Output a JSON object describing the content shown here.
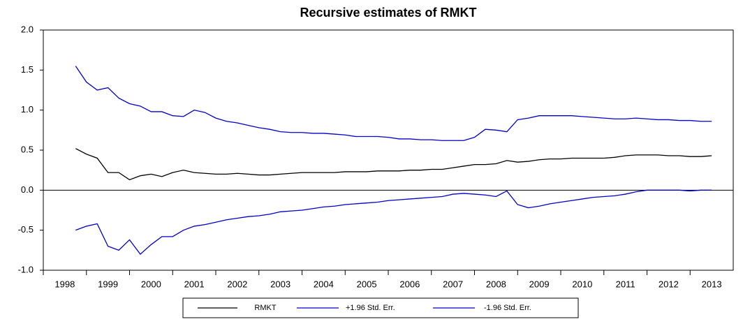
{
  "chart_data": {
    "type": "line",
    "title": "Recursive estimates of RMKT",
    "x": [
      1998.75,
      1999,
      1999.25,
      1999.5,
      1999.75,
      2000,
      2000.25,
      2000.5,
      2000.75,
      2001,
      2001.25,
      2001.5,
      2001.75,
      2002,
      2002.25,
      2002.5,
      2002.75,
      2003,
      2003.25,
      2003.5,
      2003.75,
      2004,
      2004.25,
      2004.5,
      2004.75,
      2005,
      2005.25,
      2005.5,
      2005.75,
      2006,
      2006.25,
      2006.5,
      2006.75,
      2007,
      2007.25,
      2007.5,
      2007.75,
      2008,
      2008.25,
      2008.5,
      2008.75,
      2009,
      2009.25,
      2009.5,
      2009.75,
      2010,
      2010.25,
      2010.5,
      2010.75,
      2011,
      2011.25,
      2011.5,
      2011.75,
      2012,
      2012.25,
      2012.5,
      2012.75,
      2013,
      2013.25,
      2013.5
    ],
    "series": [
      {
        "name": "RMKT",
        "color": "#000000",
        "values": [
          0.52,
          0.45,
          0.4,
          0.22,
          0.22,
          0.13,
          0.18,
          0.2,
          0.17,
          0.22,
          0.25,
          0.22,
          0.21,
          0.2,
          0.2,
          0.21,
          0.2,
          0.19,
          0.19,
          0.2,
          0.21,
          0.22,
          0.22,
          0.22,
          0.22,
          0.23,
          0.23,
          0.23,
          0.24,
          0.24,
          0.24,
          0.25,
          0.25,
          0.26,
          0.26,
          0.28,
          0.3,
          0.32,
          0.32,
          0.33,
          0.37,
          0.35,
          0.36,
          0.38,
          0.39,
          0.39,
          0.4,
          0.4,
          0.4,
          0.4,
          0.41,
          0.43,
          0.44,
          0.44,
          0.44,
          0.43,
          0.43,
          0.42,
          0.42,
          0.43
        ]
      },
      {
        "name": "+1.96 Std. Err.",
        "color": "#0000cc",
        "values": [
          1.55,
          1.35,
          1.25,
          1.28,
          1.15,
          1.08,
          1.05,
          0.98,
          0.98,
          0.93,
          0.92,
          1.0,
          0.97,
          0.9,
          0.86,
          0.84,
          0.81,
          0.78,
          0.76,
          0.73,
          0.72,
          0.72,
          0.71,
          0.71,
          0.7,
          0.69,
          0.67,
          0.67,
          0.67,
          0.66,
          0.64,
          0.64,
          0.63,
          0.63,
          0.62,
          0.62,
          0.62,
          0.66,
          0.76,
          0.75,
          0.73,
          0.88,
          0.9,
          0.93,
          0.93,
          0.93,
          0.93,
          0.92,
          0.91,
          0.9,
          0.89,
          0.89,
          0.9,
          0.89,
          0.88,
          0.88,
          0.87,
          0.87,
          0.86,
          0.86
        ]
      },
      {
        "name": "-1.96 Std. Err.",
        "color": "#0000cc",
        "values": [
          -0.5,
          -0.45,
          -0.42,
          -0.7,
          -0.75,
          -0.62,
          -0.8,
          -0.68,
          -0.58,
          -0.58,
          -0.5,
          -0.45,
          -0.43,
          -0.4,
          -0.37,
          -0.35,
          -0.33,
          -0.32,
          -0.3,
          -0.27,
          -0.26,
          -0.25,
          -0.23,
          -0.21,
          -0.2,
          -0.18,
          -0.17,
          -0.16,
          -0.15,
          -0.13,
          -0.12,
          -0.11,
          -0.1,
          -0.09,
          -0.08,
          -0.05,
          -0.04,
          -0.05,
          -0.06,
          -0.08,
          -0.01,
          -0.18,
          -0.22,
          -0.2,
          -0.17,
          -0.15,
          -0.13,
          -0.11,
          -0.09,
          -0.08,
          -0.07,
          -0.05,
          -0.02,
          0,
          0,
          0,
          0,
          -0.01,
          0,
          0
        ]
      }
    ],
    "xlim": [
      1998,
      2014
    ],
    "xticks": [
      1998,
      1999,
      2000,
      2001,
      2002,
      2003,
      2004,
      2005,
      2006,
      2007,
      2008,
      2009,
      2010,
      2011,
      2012,
      2013
    ],
    "ylim": [
      -1,
      2
    ],
    "yticks": [
      {
        "value": -1,
        "label": "-1.0"
      },
      -0.5,
      {
        "value": 0,
        "label": "0.0"
      },
      0.5,
      {
        "value": 1,
        "label": "1.0"
      },
      1.5,
      {
        "value": 2,
        "label": "2.0"
      }
    ],
    "reference_line": 0,
    "legend": "bottom"
  }
}
